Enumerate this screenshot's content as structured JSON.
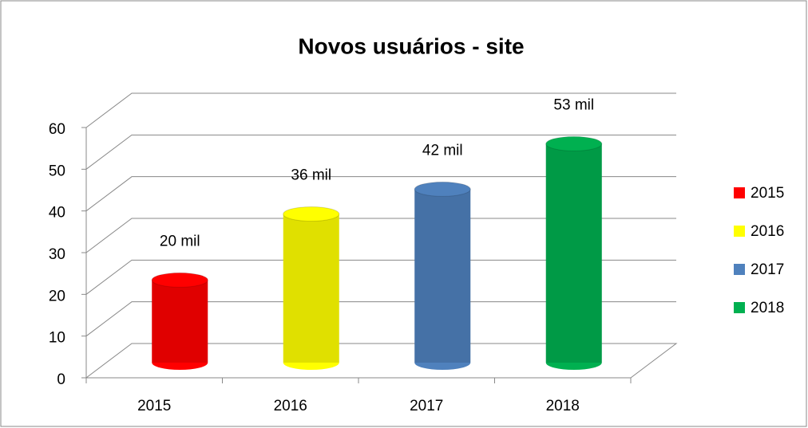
{
  "chart_data": {
    "type": "bar3d",
    "title": "Novos usuários - site",
    "categories": [
      "2015",
      "2016",
      "2017",
      "2018"
    ],
    "values": [
      20,
      36,
      42,
      53
    ],
    "value_labels": [
      "20 mil",
      "36 mil",
      "42 mil",
      "53 mil"
    ],
    "colors": [
      "#ff0000",
      "#ffff00",
      "#4f81bd",
      "#00b050"
    ],
    "ylim": [
      0,
      60
    ],
    "yticks": [
      0,
      10,
      20,
      30,
      40,
      50,
      60
    ],
    "grid": true,
    "legend": "right"
  }
}
